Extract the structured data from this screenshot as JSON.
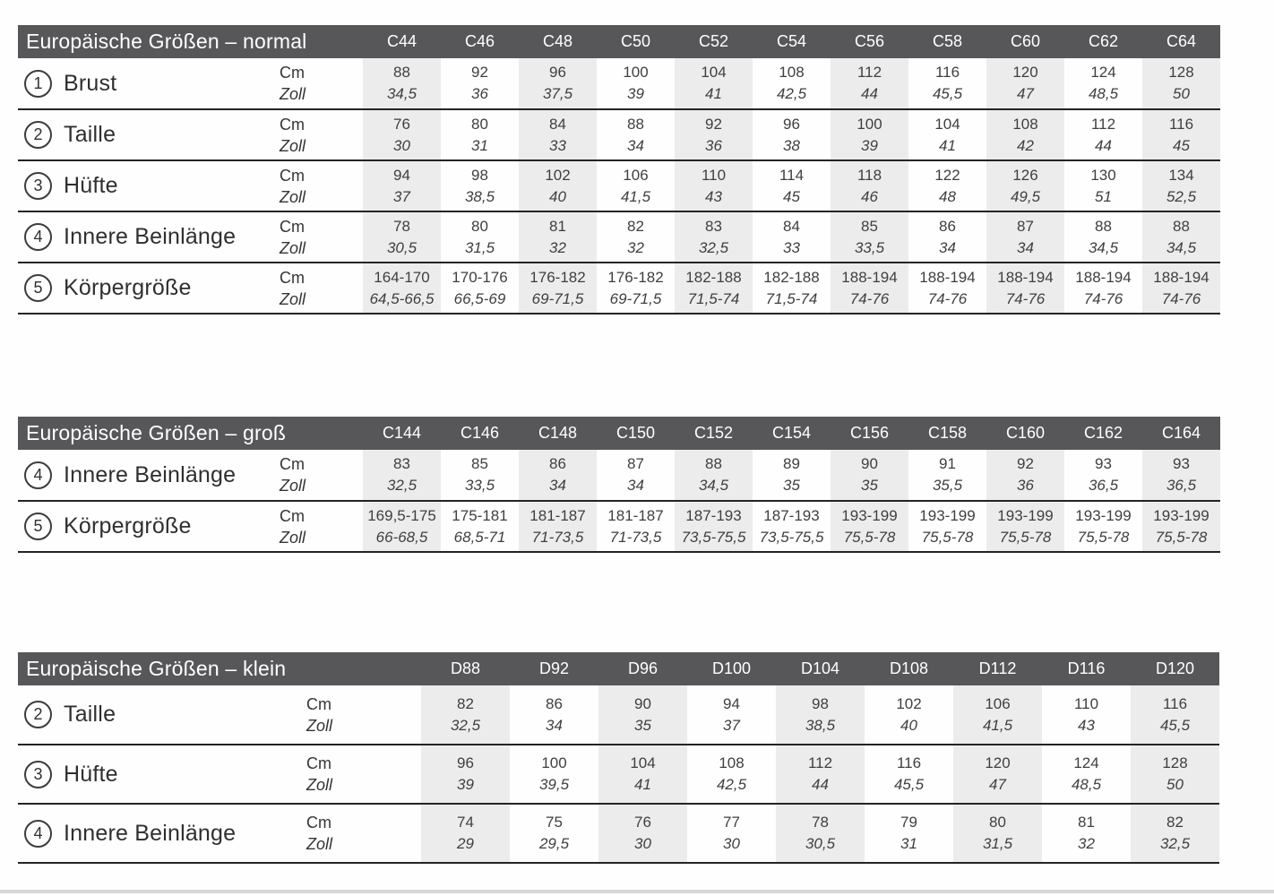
{
  "units": {
    "cm": "Cm",
    "zoll": "Zoll"
  },
  "colors": {
    "header_bar": "#57575a",
    "shaded_column": "#ececec",
    "row_separator": "#242424",
    "text": "#3f3f41",
    "title_text": "#ffffff",
    "bottom_rule": "#d7d7d9"
  },
  "tables": [
    {
      "title": "Europäische Größen – normal",
      "columns": [
        "C44",
        "C46",
        "C48",
        "C50",
        "C52",
        "C54",
        "C56",
        "C58",
        "C60",
        "C62",
        "C64"
      ],
      "rows": [
        {
          "num": "1",
          "label": "Brust",
          "cm": [
            "88",
            "92",
            "96",
            "100",
            "104",
            "108",
            "112",
            "116",
            "120",
            "124",
            "128"
          ],
          "zoll": [
            "34,5",
            "36",
            "37,5",
            "39",
            "41",
            "42,5",
            "44",
            "45,5",
            "47",
            "48,5",
            "50"
          ]
        },
        {
          "num": "2",
          "label": "Taille",
          "cm": [
            "76",
            "80",
            "84",
            "88",
            "92",
            "96",
            "100",
            "104",
            "108",
            "112",
            "116"
          ],
          "zoll": [
            "30",
            "31",
            "33",
            "34",
            "36",
            "38",
            "39",
            "41",
            "42",
            "44",
            "45"
          ]
        },
        {
          "num": "3",
          "label": "Hüfte",
          "cm": [
            "94",
            "98",
            "102",
            "106",
            "110",
            "114",
            "118",
            "122",
            "126",
            "130",
            "134"
          ],
          "zoll": [
            "37",
            "38,5",
            "40",
            "41,5",
            "43",
            "45",
            "46",
            "48",
            "49,5",
            "51",
            "52,5"
          ]
        },
        {
          "num": "4",
          "label": "Innere Beinlänge",
          "cm": [
            "78",
            "80",
            "81",
            "82",
            "83",
            "84",
            "85",
            "86",
            "87",
            "88",
            "88"
          ],
          "zoll": [
            "30,5",
            "31,5",
            "32",
            "32",
            "32,5",
            "33",
            "33,5",
            "34",
            "34",
            "34,5",
            "34,5"
          ]
        },
        {
          "num": "5",
          "label": "Körpergröße",
          "cm": [
            "164-170",
            "170-176",
            "176-182",
            "176-182",
            "182-188",
            "182-188",
            "188-194",
            "188-194",
            "188-194",
            "188-194",
            "188-194"
          ],
          "zoll": [
            "64,5-66,5",
            "66,5-69",
            "69-71,5",
            "69-71,5",
            "71,5-74",
            "71,5-74",
            "74-76",
            "74-76",
            "74-76",
            "74-76",
            "74-76"
          ]
        }
      ]
    },
    {
      "title": "Europäische Größen – groß",
      "columns": [
        "C144",
        "C146",
        "C148",
        "C150",
        "C152",
        "C154",
        "C156",
        "C158",
        "C160",
        "C162",
        "C164"
      ],
      "rows": [
        {
          "num": "4",
          "label": "Innere Beinlänge",
          "cm": [
            "83",
            "85",
            "86",
            "87",
            "88",
            "89",
            "90",
            "91",
            "92",
            "93",
            "93"
          ],
          "zoll": [
            "32,5",
            "33,5",
            "34",
            "34",
            "34,5",
            "35",
            "35",
            "35,5",
            "36",
            "36,5",
            "36,5"
          ]
        },
        {
          "num": "5",
          "label": "Körpergröße",
          "cm": [
            "169,5-175",
            "175-181",
            "181-187",
            "181-187",
            "187-193",
            "187-193",
            "193-199",
            "193-199",
            "193-199",
            "193-199",
            "193-199"
          ],
          "zoll": [
            "66-68,5",
            "68,5-71",
            "71-73,5",
            "71-73,5",
            "73,5-75,5",
            "73,5-75,5",
            "75,5-78",
            "75,5-78",
            "75,5-78",
            "75,5-78",
            "75,5-78"
          ]
        }
      ]
    },
    {
      "title": "Europäische Größen – klein",
      "columns": [
        "D88",
        "D92",
        "D96",
        "D100",
        "D104",
        "D108",
        "D112",
        "D116",
        "D120"
      ],
      "rows": [
        {
          "num": "2",
          "label": "Taille",
          "cm": [
            "82",
            "86",
            "90",
            "94",
            "98",
            "102",
            "106",
            "110",
            "116"
          ],
          "zoll": [
            "32,5",
            "34",
            "35",
            "37",
            "38,5",
            "40",
            "41,5",
            "43",
            "45,5"
          ]
        },
        {
          "num": "3",
          "label": "Hüfte",
          "cm": [
            "96",
            "100",
            "104",
            "108",
            "112",
            "116",
            "120",
            "124",
            "128"
          ],
          "zoll": [
            "39",
            "39,5",
            "41",
            "42,5",
            "44",
            "45,5",
            "47",
            "48,5",
            "50"
          ]
        },
        {
          "num": "4",
          "label": "Innere Beinlänge",
          "cm": [
            "74",
            "75",
            "76",
            "77",
            "78",
            "79",
            "80",
            "81",
            "82"
          ],
          "zoll": [
            "29",
            "29,5",
            "30",
            "30",
            "30,5",
            "31",
            "31,5",
            "32",
            "32,5"
          ]
        }
      ]
    }
  ]
}
